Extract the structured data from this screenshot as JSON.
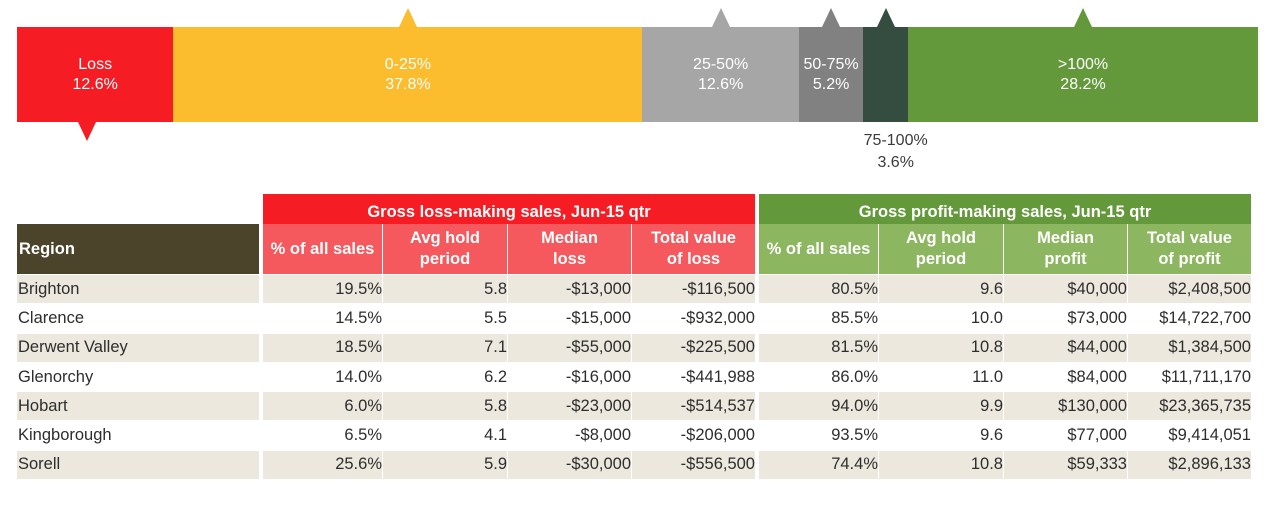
{
  "colors": {
    "loss": "#f51c23",
    "band_0_25": "#fbbc2e",
    "band_25_50": "#a6a6a6",
    "band_50_75": "#818181",
    "band_75_100": "#344d40",
    "band_over_100": "#63993a",
    "loss_header_light": "#f5595e",
    "profit_header_light": "#8cb65f",
    "region_header": "#4b432a",
    "row_shade": "#ece8de"
  },
  "chart_data": [
    {
      "type": "bar",
      "stacked": true,
      "orientation": "horizontal",
      "categories": [
        "Loss",
        "0-25%",
        "25-50%",
        "50-75%",
        "75-100%",
        ">100%"
      ],
      "values": [
        12.6,
        37.8,
        12.6,
        5.2,
        3.6,
        28.2
      ],
      "labels": [
        "12.6%",
        "37.8%",
        "12.6%",
        "5.2%",
        "3.6%",
        "28.2%"
      ],
      "colors": [
        "#f51c23",
        "#fbbc2e",
        "#a6a6a6",
        "#818181",
        "#344d40",
        "#63993a"
      ],
      "arrows": [
        "down",
        "up",
        "up",
        "up",
        "up",
        "up"
      ]
    },
    {
      "type": "table",
      "groups": [
        {
          "label": "Gross loss-making sales, Jun-15 qtr",
          "span": 4
        },
        {
          "label": "Gross profit-making sales, Jun-15 qtr",
          "span": 4
        }
      ],
      "columns": [
        "Region",
        "% of all sales",
        "Avg hold period",
        "Median loss",
        "Total value of loss",
        "% of all sales",
        "Avg hold period",
        "Median profit",
        "Total value of profit"
      ],
      "header_lines": [
        [
          "Region"
        ],
        [
          "% of all sales"
        ],
        [
          "Avg hold",
          "period"
        ],
        [
          "Median",
          "loss"
        ],
        [
          "Total value",
          "of loss"
        ],
        [
          "% of all sales"
        ],
        [
          "Avg hold",
          "period"
        ],
        [
          "Median",
          "profit"
        ],
        [
          "Total value",
          "of profit"
        ]
      ],
      "rows": [
        [
          "Brighton",
          "19.5%",
          "5.8",
          "-$13,000",
          "-$116,500",
          "80.5%",
          "9.6",
          "$40,000",
          "$2,408,500"
        ],
        [
          "Clarence",
          "14.5%",
          "5.5",
          "-$15,000",
          "-$932,000",
          "85.5%",
          "10.0",
          "$73,000",
          "$14,722,700"
        ],
        [
          "Derwent Valley",
          "18.5%",
          "7.1",
          "-$55,000",
          "-$225,500",
          "81.5%",
          "10.8",
          "$44,000",
          "$1,384,500"
        ],
        [
          "Glenorchy",
          "14.0%",
          "6.2",
          "-$16,000",
          "-$441,988",
          "86.0%",
          "11.0",
          "$84,000",
          "$11,711,170"
        ],
        [
          "Hobart",
          "6.0%",
          "5.8",
          "-$23,000",
          "-$514,537",
          "94.0%",
          "9.9",
          "$130,000",
          "$23,365,735"
        ],
        [
          "Kingborough",
          "6.5%",
          "4.1",
          "-$8,000",
          "-$206,000",
          "93.5%",
          "9.6",
          "$77,000",
          "$9,414,051"
        ],
        [
          "Sorell",
          "25.6%",
          "5.9",
          "-$30,000",
          "-$556,500",
          "74.4%",
          "10.8",
          "$59,333",
          "$2,896,133"
        ]
      ]
    }
  ]
}
